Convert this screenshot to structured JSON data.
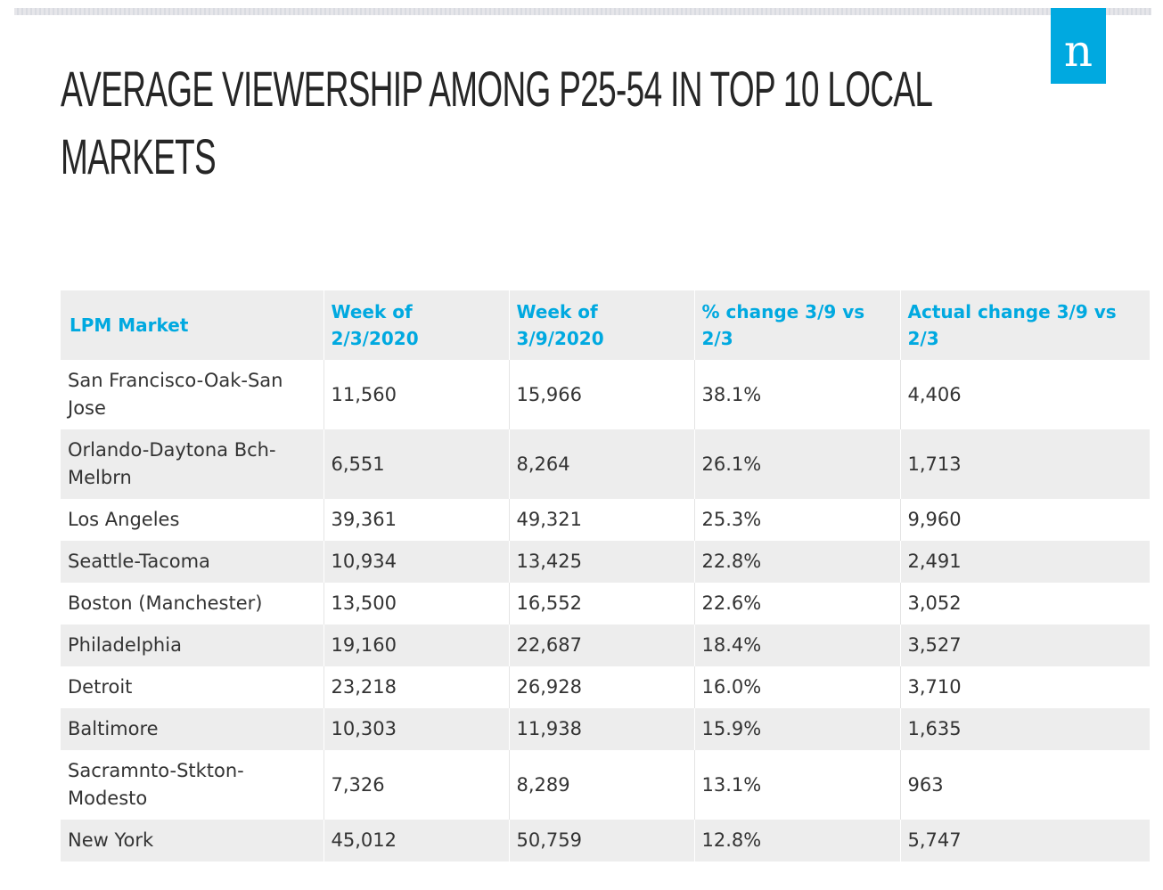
{
  "title": "Average Viewership among P25-54 in Top 10 Local Markets",
  "logo_letter": "n",
  "colors": {
    "accent": "#00a9e0",
    "row_shade": "#ededed",
    "title": "#262626"
  },
  "table": {
    "headers": [
      "LPM Market",
      "Week of 2/3/2020",
      "Week of 3/9/2020",
      "% change 3/9 vs 2/3",
      "Actual change 3/9 vs 2/3"
    ],
    "rows": [
      [
        "San Francisco-Oak-San Jose",
        "11,560",
        "15,966",
        "38.1%",
        "4,406"
      ],
      [
        "Orlando-Daytona Bch-Melbrn",
        "6,551",
        "8,264",
        "26.1%",
        "1,713"
      ],
      [
        "Los Angeles",
        "39,361",
        "49,321",
        "25.3%",
        "9,960"
      ],
      [
        "Seattle-Tacoma",
        "10,934",
        "13,425",
        "22.8%",
        "2,491"
      ],
      [
        "Boston (Manchester)",
        "13,500",
        "16,552",
        "22.6%",
        "3,052"
      ],
      [
        "Philadelphia",
        "19,160",
        "22,687",
        "18.4%",
        "3,527"
      ],
      [
        "Detroit",
        "23,218",
        "26,928",
        "16.0%",
        "3,710"
      ],
      [
        "Baltimore",
        "10,303",
        "11,938",
        "15.9%",
        "1,635"
      ],
      [
        "Sacramnto-Stkton-Modesto",
        "7,326",
        "8,289",
        "13.1%",
        "963"
      ],
      [
        "New York",
        "45,012",
        "50,759",
        "12.8%",
        "5,747"
      ]
    ]
  }
}
